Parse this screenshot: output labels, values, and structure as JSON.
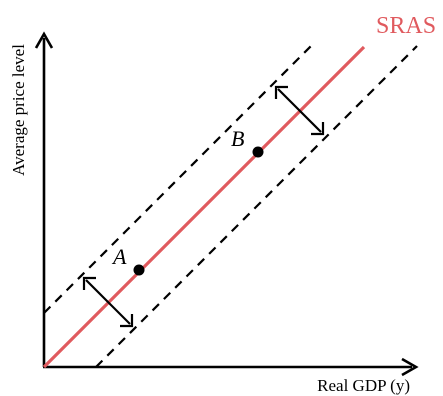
{
  "diagram": {
    "curve_label": "SRAS",
    "y_axis_label": "Average price level",
    "x_axis_label": "Real GDP (y)",
    "points": [
      {
        "label": "A"
      },
      {
        "label": "B"
      }
    ]
  },
  "colors": {
    "sras": "#e05a5e",
    "axis": "#000000",
    "text": "#000000"
  }
}
